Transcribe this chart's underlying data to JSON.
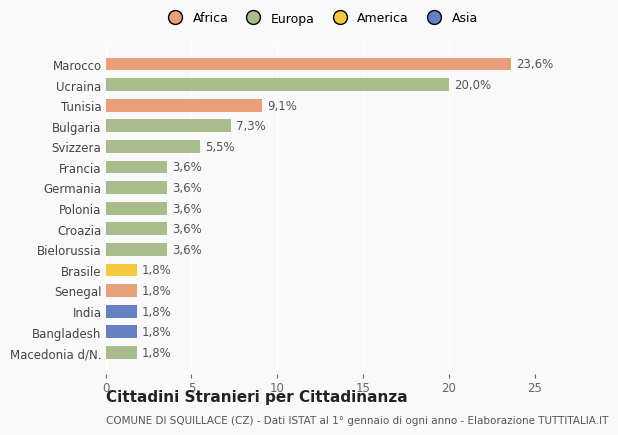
{
  "countries": [
    "Macedonia d/N.",
    "Bangladesh",
    "India",
    "Senegal",
    "Brasile",
    "Bielorussia",
    "Croazia",
    "Polonia",
    "Germania",
    "Francia",
    "Svizzera",
    "Bulgaria",
    "Tunisia",
    "Ucraina",
    "Marocco"
  ],
  "values": [
    1.8,
    1.8,
    1.8,
    1.8,
    1.8,
    3.6,
    3.6,
    3.6,
    3.6,
    3.6,
    5.5,
    7.3,
    9.1,
    20.0,
    23.6
  ],
  "labels": [
    "1,8%",
    "1,8%",
    "1,8%",
    "1,8%",
    "1,8%",
    "3,6%",
    "3,6%",
    "3,6%",
    "3,6%",
    "3,6%",
    "5,5%",
    "7,3%",
    "9,1%",
    "20,0%",
    "23,6%"
  ],
  "colors": [
    "#a8bc8c",
    "#6680c4",
    "#6680c4",
    "#e8a07a",
    "#f5c842",
    "#a8bc8c",
    "#a8bc8c",
    "#a8bc8c",
    "#a8bc8c",
    "#a8bc8c",
    "#a8bc8c",
    "#a8bc8c",
    "#e8a07a",
    "#a8bc8c",
    "#e8a07a"
  ],
  "legend_labels": [
    "Africa",
    "Europa",
    "America",
    "Asia"
  ],
  "legend_colors": [
    "#e8a07a",
    "#a8bc8c",
    "#f5c842",
    "#6680c4"
  ],
  "xlim": [
    0,
    25
  ],
  "xticks": [
    0,
    5,
    10,
    15,
    20,
    25
  ],
  "title": "Cittadini Stranieri per Cittadinanza",
  "subtitle": "COMUNE DI SQUILLACE (CZ) - Dati ISTAT al 1° gennaio di ogni anno - Elaborazione TUTTITALIA.IT",
  "background_color": "#f9f9f9",
  "bar_height": 0.62,
  "label_fontsize": 8.5,
  "ylabel_fontsize": 8.5,
  "xlabel_fontsize": 8.5,
  "title_fontsize": 11,
  "subtitle_fontsize": 7.5
}
